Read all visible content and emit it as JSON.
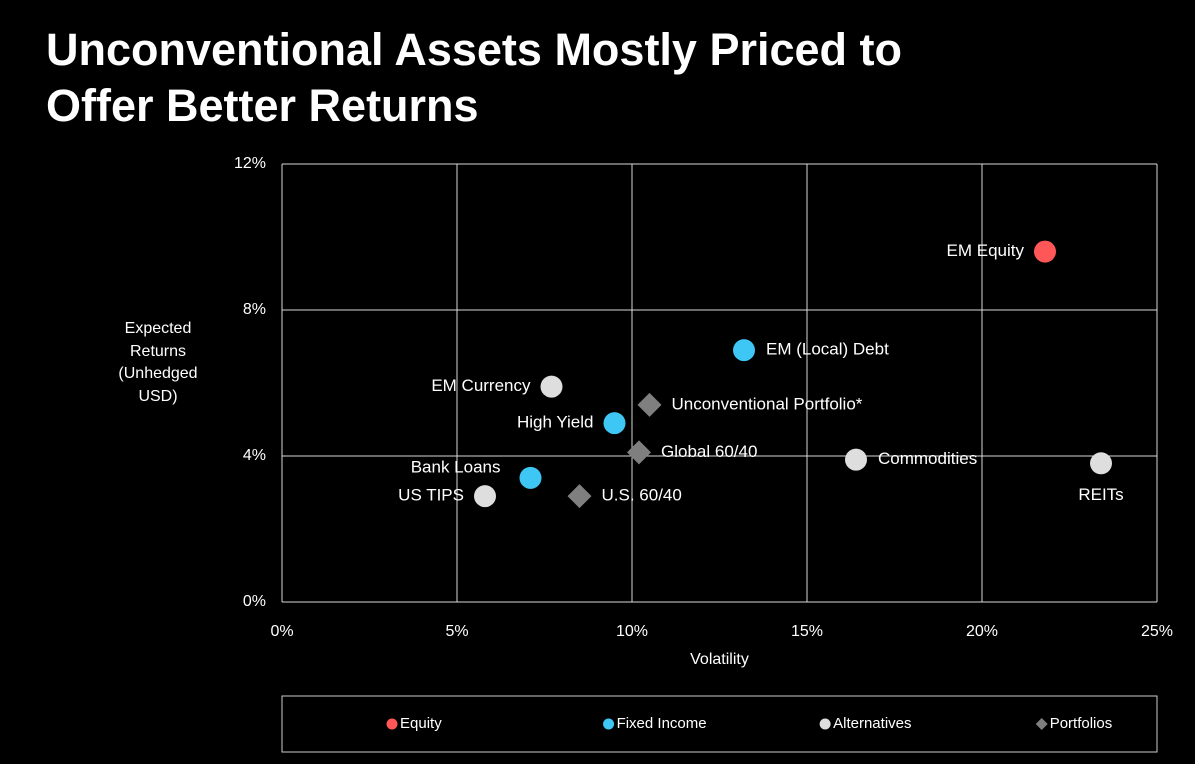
{
  "chart_data": {
    "type": "scatter",
    "title": "Unconventional Assets Mostly Priced to Offer Better Returns",
    "x_label": "Volatility",
    "y_label": "Expected Returns (Unhedged USD)",
    "xlim": [
      0,
      25
    ],
    "xticks": [
      {
        "value": 0,
        "label": "0%"
      },
      {
        "value": 5,
        "label": "5%"
      },
      {
        "value": 10,
        "label": "10%"
      },
      {
        "value": 15,
        "label": "15%"
      },
      {
        "value": 20,
        "label": "20%"
      },
      {
        "value": 25,
        "label": "25%"
      }
    ],
    "ylim": [
      0,
      12
    ],
    "yticks": [
      {
        "value": 0,
        "label": "0%"
      },
      {
        "value": 4,
        "label": "4%"
      },
      {
        "value": 8,
        "label": "8%"
      },
      {
        "value": 12,
        "label": "12%"
      }
    ],
    "grid": true,
    "legend": "bottom",
    "series": [
      {
        "name": "Equity",
        "color": "#ff5757",
        "marker": "circle",
        "labels": [
          "EM Equity"
        ],
        "x": [
          21.8
        ],
        "values": [
          9.6
        ]
      },
      {
        "name": "Fixed Income",
        "color": "#3ec6f4",
        "marker": "circle",
        "labels": [
          "EM (Local) Debt",
          "High Yield",
          "Bank Loans"
        ],
        "x": [
          13.2,
          9.5,
          7.1
        ],
        "values": [
          6.9,
          4.9,
          3.4
        ]
      },
      {
        "name": "Alternatives",
        "color": "#dedede",
        "marker": "circle",
        "labels": [
          "EM Currency",
          "Commodities",
          "REITs",
          "US TIPS"
        ],
        "x": [
          7.7,
          16.4,
          23.4,
          5.8
        ],
        "values": [
          5.9,
          3.9,
          3.8,
          2.9
        ]
      },
      {
        "name": "Portfolios",
        "color": "#7f7f7f",
        "marker": "diamond",
        "labels": [
          "Unconventional Portfolio*",
          "Global 60/40",
          "U.S. 60/40"
        ],
        "x": [
          10.5,
          10.2,
          8.5
        ],
        "values": [
          5.4,
          4.1,
          2.9
        ]
      }
    ]
  }
}
